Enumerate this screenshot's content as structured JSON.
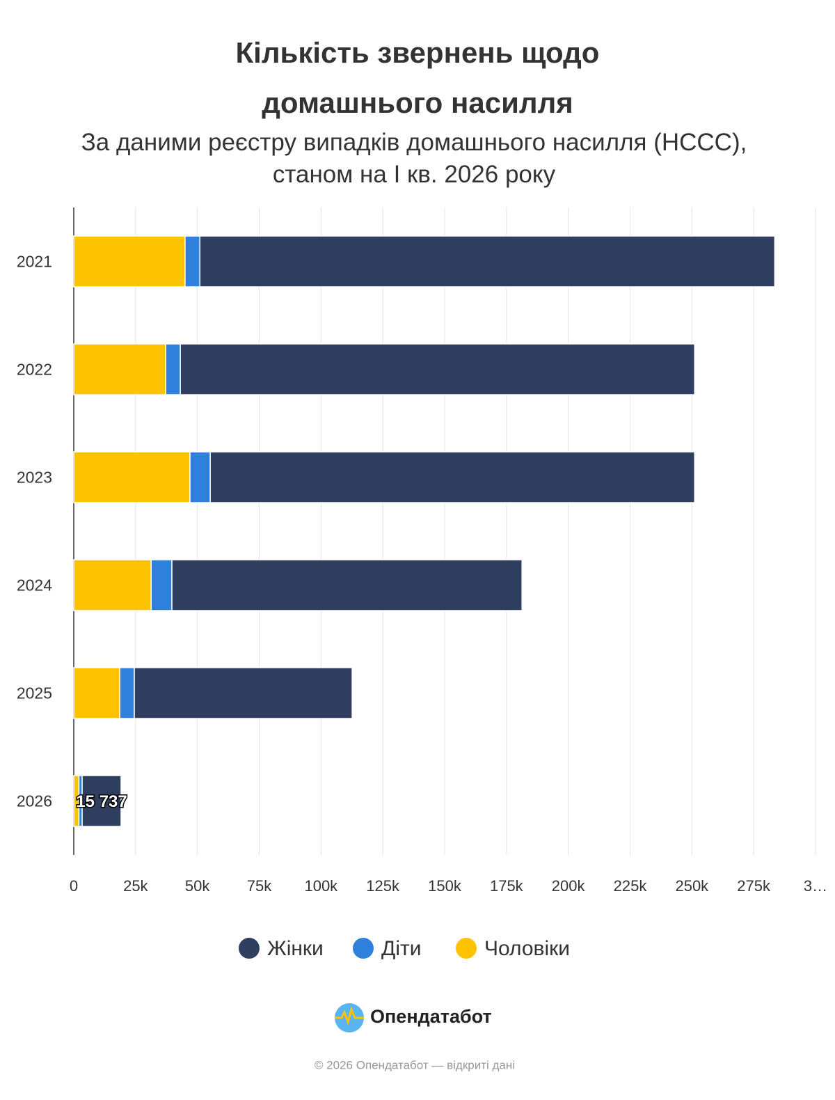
{
  "chart_data": {
    "type": "stacked_bar_horizontal",
    "title": "Кількість звернень щодо домашнього насилля",
    "subtitle": "За даними реєстру випадків домашнього насилля (НССС), станом на І кв. 2026 року",
    "categories": [
      "2021",
      "2022",
      "2023",
      "2024",
      "2025",
      "2026"
    ],
    "series": [
      {
        "name": "Чоловіки",
        "color": "#fdc300",
        "values": [
          45000,
          37200,
          47000,
          31300,
          18600,
          2100
        ]
      },
      {
        "name": "Діти",
        "color": "#2f80dc",
        "values": [
          6000,
          5900,
          8200,
          8400,
          5900,
          1300
        ]
      },
      {
        "name": "Жінки",
        "color": "#2f3e5e",
        "values": [
          232500,
          208000,
          195900,
          141600,
          88100,
          15737
        ],
        "value_labels": [
          null,
          null,
          null,
          null,
          null,
          "15 737"
        ]
      }
    ],
    "legend_order": [
      2,
      1,
      0
    ],
    "xlim": [
      0,
      300000
    ],
    "xticks": [
      0,
      {
        "value": 25000,
        "label": "25k"
      },
      {
        "value": 50000,
        "label": "50k"
      },
      {
        "value": 75000,
        "label": "75k"
      },
      {
        "value": 100000,
        "label": "100k"
      },
      {
        "value": 125000,
        "label": "125k"
      },
      {
        "value": 150000,
        "label": "150k"
      },
      {
        "value": 175000,
        "label": "175k"
      },
      {
        "value": 200000,
        "label": "200k"
      },
      {
        "value": 225000,
        "label": "225k"
      },
      {
        "value": 250000,
        "label": "250k"
      },
      {
        "value": 275000,
        "label": "275k"
      },
      {
        "value": 300000,
        "label": "3…"
      }
    ],
    "grid": true
  },
  "brand": "Опендатабот",
  "footer": "© 2026 Опендатабот — відкриті дані"
}
